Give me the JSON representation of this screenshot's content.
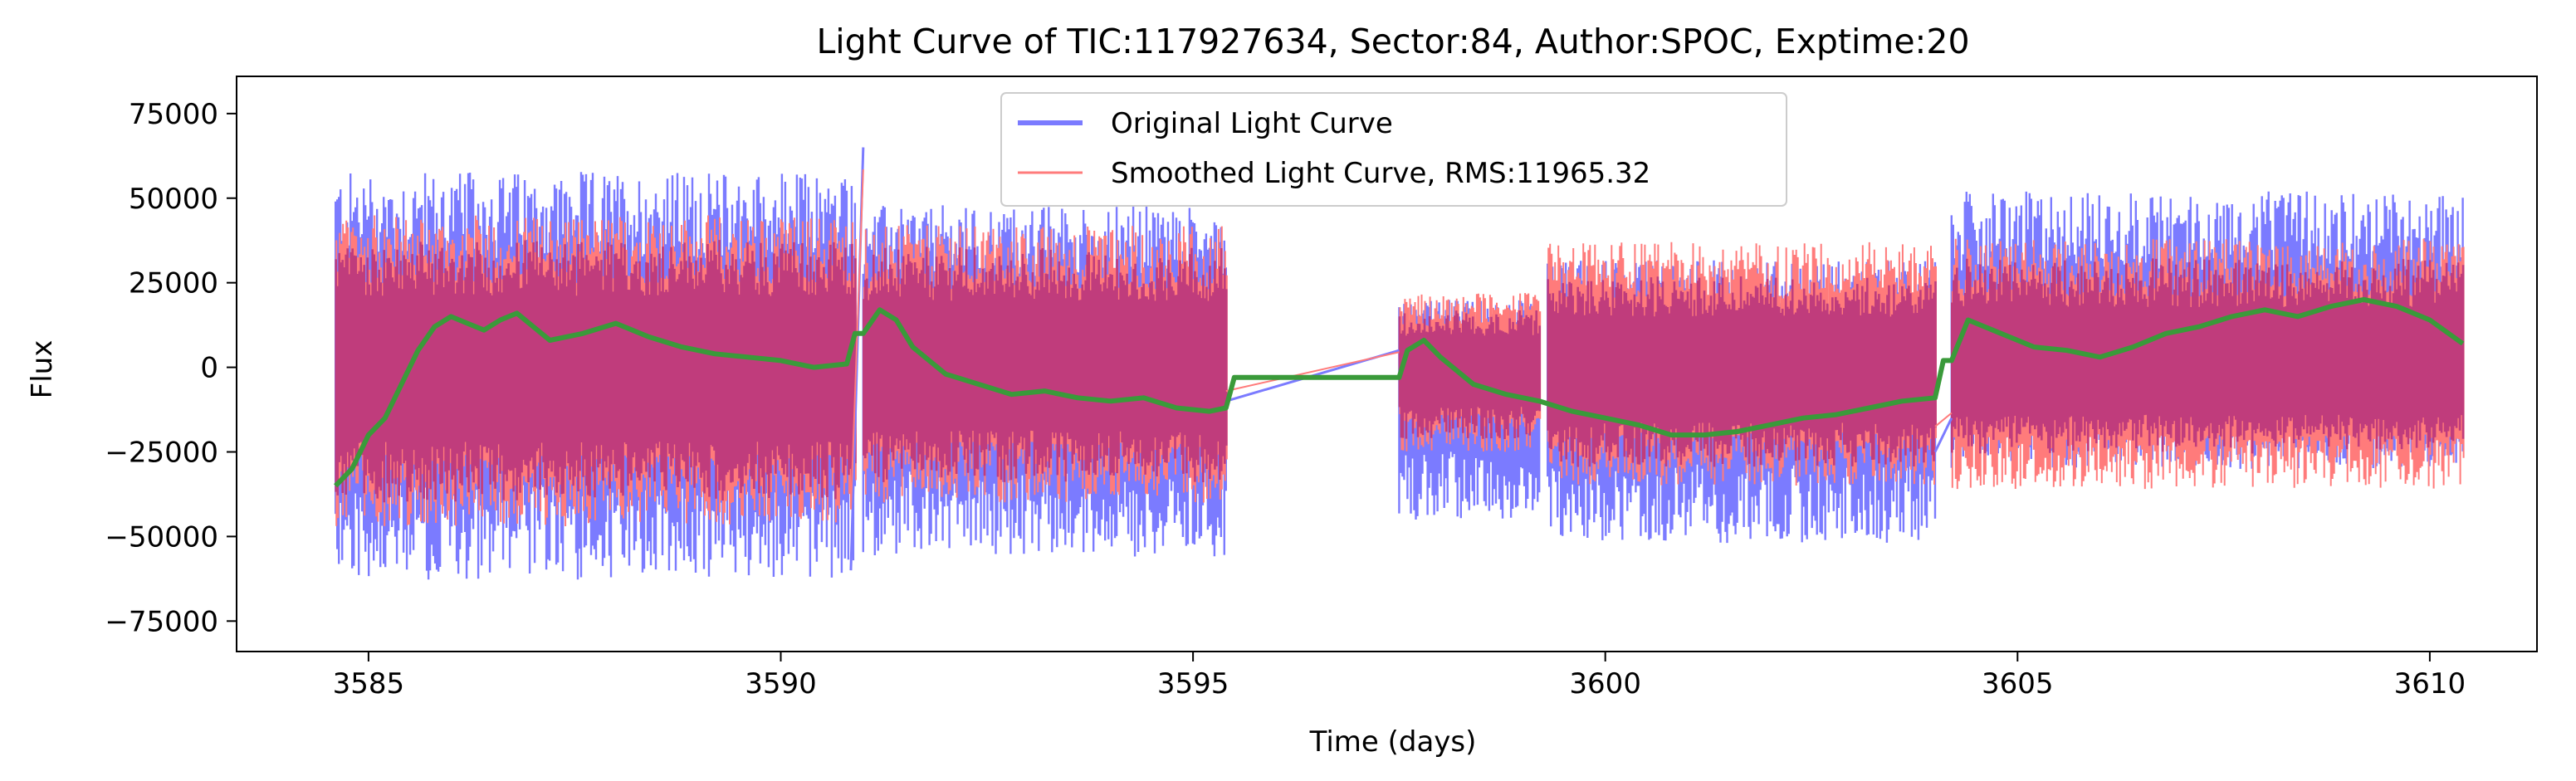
{
  "chart_data": {
    "type": "line",
    "title": "Light Curve of TIC:117927634, Sector:84, Author:SPOC, Exptime:20",
    "xlabel": "Time (days)",
    "ylabel": "Flux",
    "xlim": [
      3583.4,
      3611.3
    ],
    "ylim": [
      -84000,
      86000
    ],
    "xticks": [
      3585,
      3590,
      3595,
      3600,
      3605,
      3610
    ],
    "yticks": [
      -75000,
      -50000,
      -25000,
      0,
      25000,
      50000,
      75000
    ],
    "xtick_labels": [
      "3585",
      "3590",
      "3595",
      "3600",
      "3605",
      "3610"
    ],
    "ytick_labels": [
      "−75000",
      "−50000",
      "−25000",
      "0",
      "25000",
      "50000",
      "75000"
    ],
    "grid": false,
    "legend_position": "top-center",
    "segments": [
      {
        "start": 3584.6,
        "end": 3590.9,
        "orig_low": -63000,
        "orig_high": 58000,
        "smooth_low": -47000,
        "smooth_high": 45000
      },
      {
        "start": 3591.0,
        "end": 3595.4,
        "orig_low": -56000,
        "orig_high": 48000,
        "smooth_low": -40000,
        "smooth_high": 42000
      },
      {
        "start": 3597.5,
        "end": 3599.2,
        "orig_low": -45000,
        "orig_high": 20000,
        "smooth_low": -25000,
        "smooth_high": 22000
      },
      {
        "start": 3599.3,
        "end": 3604.0,
        "orig_low": -52000,
        "orig_high": 32000,
        "smooth_low": -35000,
        "smooth_high": 37000
      },
      {
        "start": 3604.2,
        "end": 3610.4,
        "orig_low": -30000,
        "orig_high": 52000,
        "smooth_low": -36000,
        "smooth_high": 38000
      }
    ],
    "series": [
      {
        "name": "Original Light Curve",
        "color": "#7b7bff",
        "description_values": "dense 20s-cadence flux, range approx -76000 to 70000"
      },
      {
        "name": "Smoothed Light Curve, RMS:11965.32",
        "color": "#ff7b7b",
        "description_values": "dense smoothed flux"
      },
      {
        "color": "#3a9a3a",
        "x": [
          3584.6,
          3584.8,
          3585.0,
          3585.2,
          3585.4,
          3585.6,
          3585.8,
          3586.0,
          3586.2,
          3586.4,
          3586.6,
          3586.8,
          3587.0,
          3587.2,
          3587.6,
          3588.0,
          3588.4,
          3588.8,
          3589.2,
          3589.6,
          3590.0,
          3590.4,
          3590.8,
          3590.9,
          3591.0,
          3591.2,
          3591.4,
          3591.6,
          3591.8,
          3592.0,
          3592.4,
          3592.8,
          3593.2,
          3593.6,
          3594.0,
          3594.4,
          3594.8,
          3595.2,
          3595.4,
          3595.5,
          3597.5,
          3597.6,
          3597.8,
          3598.0,
          3598.4,
          3598.8,
          3599.2,
          3599.6,
          3600.0,
          3600.4,
          3600.8,
          3601.2,
          3601.6,
          3602.0,
          3602.4,
          3602.8,
          3603.2,
          3603.6,
          3604.0,
          3604.1,
          3604.2,
          3604.4,
          3604.8,
          3605.2,
          3605.6,
          3606.0,
          3606.4,
          3606.8,
          3607.2,
          3607.6,
          3608.0,
          3608.4,
          3608.8,
          3609.2,
          3609.6,
          3610.0,
          3610.4
        ],
        "y": [
          -35000,
          -30000,
          -20000,
          -15000,
          -5000,
          5000,
          12000,
          15000,
          13000,
          11000,
          14000,
          16000,
          12000,
          8000,
          10000,
          13000,
          9000,
          6000,
          4000,
          3000,
          2000,
          0,
          1000,
          10000,
          10000,
          17000,
          14000,
          6000,
          2000,
          -2000,
          -5000,
          -8000,
          -7000,
          -9000,
          -10000,
          -9000,
          -12000,
          -13000,
          -12000,
          -3000,
          -3000,
          5000,
          8000,
          3000,
          -5000,
          -8000,
          -10000,
          -13000,
          -15000,
          -17000,
          -20000,
          -20000,
          -19000,
          -17000,
          -15000,
          -14000,
          -12000,
          -10000,
          -9000,
          2000,
          2000,
          14000,
          10000,
          6000,
          5000,
          3000,
          6000,
          10000,
          12000,
          15000,
          17000,
          15000,
          18000,
          20000,
          18000,
          14000,
          7000
        ]
      }
    ],
    "connectors": [
      {
        "x": [
          3590.85,
          3591.0
        ],
        "y_orig": [
          -60000,
          65000
        ]
      },
      {
        "x": [
          3595.4,
          3597.5
        ],
        "y_orig": [
          -10000,
          5000
        ]
      },
      {
        "x": [
          3604.0,
          3604.2
        ],
        "y_orig": [
          -25000,
          -15000
        ]
      }
    ]
  }
}
